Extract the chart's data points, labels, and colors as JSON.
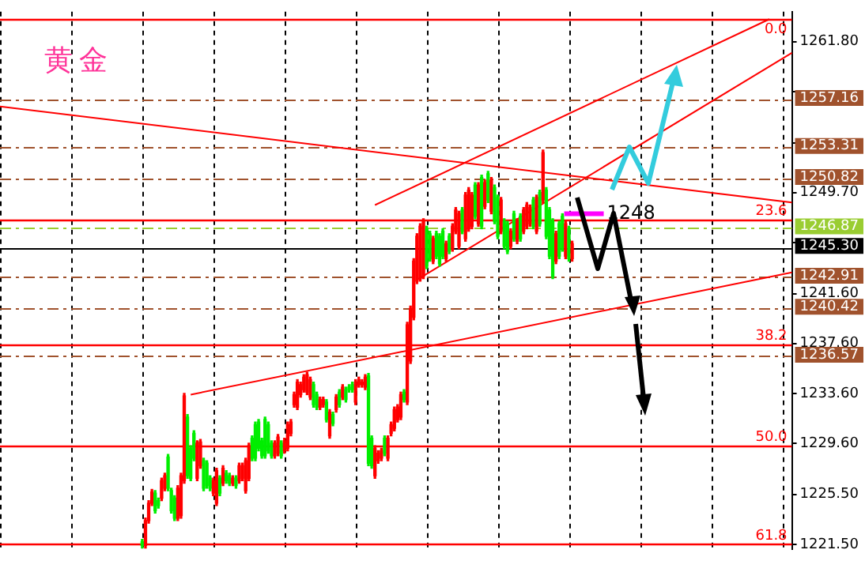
{
  "chart_data": {
    "type": "candlestick",
    "title": "黄金",
    "categories": [
      null,
      null,
      null,
      null,
      null,
      null,
      null,
      null,
      null,
      null,
      null,
      null,
      null,
      null,
      null,
      null,
      null,
      null,
      null,
      null,
      null,
      null,
      null,
      null,
      null,
      null,
      null,
      null,
      null,
      null,
      null,
      null,
      null,
      null,
      null,
      null,
      null,
      null,
      null,
      null,
      null,
      null,
      null,
      null,
      null,
      null,
      null,
      null,
      null,
      null,
      null,
      null,
      null,
      null,
      null,
      null,
      null,
      null,
      null,
      null,
      null,
      null,
      null,
      null,
      null,
      null,
      null,
      null,
      null,
      null,
      null,
      null,
      null,
      null,
      null,
      null,
      null,
      null,
      null,
      null,
      null,
      null,
      null,
      null,
      null,
      null,
      null,
      null,
      null,
      null,
      null,
      null,
      null,
      null,
      null,
      null,
      null,
      null,
      null,
      null,
      null,
      null,
      null,
      null,
      null,
      null,
      null,
      null,
      null,
      null,
      null,
      null,
      null,
      null,
      null,
      null,
      null,
      null,
      null,
      null,
      null,
      null,
      null,
      null,
      null,
      null,
      null,
      null,
      null,
      null,
      null,
      null,
      null,
      null,
      null,
      null,
      null,
      null,
      null,
      null,
      null,
      null,
      null,
      null,
      null,
      null,
      null,
      null,
      null,
      null,
      null,
      null,
      null,
      null,
      null,
      null,
      null,
      null,
      null,
      null,
      null,
      null,
      null,
      null,
      null,
      null,
      null,
      null,
      null,
      null,
      null,
      null,
      null,
      null,
      null,
      null,
      null,
      null,
      null,
      null,
      null,
      null,
      null,
      null,
      null,
      null,
      null,
      null,
      null,
      null,
      null,
      null,
      null,
      null,
      null,
      null,
      null,
      null,
      null,
      null,
      null,
      null,
      null,
      null,
      null,
      null,
      null,
      null,
      null,
      null,
      null,
      null,
      null,
      null,
      null,
      null,
      null,
      null,
      null,
      null,
      null,
      null,
      null,
      null,
      null,
      null,
      null,
      null,
      null,
      null,
      null,
      null,
      null,
      null,
      null,
      null,
      null,
      null,
      null,
      null,
      null,
      null,
      null,
      null,
      null,
      null
    ],
    "ohlc": [
      null,
      null,
      null,
      null,
      null,
      null,
      null,
      null,
      null,
      null,
      null,
      null,
      null,
      null,
      null,
      null,
      null,
      null,
      null,
      null,
      null,
      null,
      null,
      null,
      null,
      null,
      null,
      null,
      null,
      null,
      null,
      null,
      null,
      null,
      null,
      null,
      null,
      null,
      null,
      null,
      null,
      null,
      null,
      null,
      [
        1221.7,
        1221.9,
        1221.2,
        1221.4
      ],
      [
        1221.4,
        1223.6,
        1221.2,
        1223.4
      ],
      [
        1223.4,
        1225.0,
        1223.2,
        1224.8
      ],
      [
        1224.8,
        1225.9,
        1224.6,
        1225.7
      ],
      [
        1225.6,
        1225.8,
        1224.0,
        1224.2
      ],
      [
        1225.0,
        1225.2,
        1224.4,
        1224.6
      ],
      [
        1225.2,
        1226.8,
        1225.0,
        1226.6
      ],
      [
        1226.0,
        1227.2,
        1225.8,
        1227.0
      ],
      [
        1228.5,
        1228.7,
        1225.8,
        1226.0
      ],
      [
        1225.8,
        1226.0,
        1224.0,
        1224.2
      ],
      [
        1225.2,
        1225.4,
        1223.4,
        1223.6
      ],
      [
        1223.6,
        1226.2,
        1223.4,
        1226.0
      ],
      [
        1223.8,
        1227.2,
        1223.6,
        1227.0
      ],
      [
        1226.6,
        1233.6,
        1226.4,
        1233.4
      ],
      [
        1231.7,
        1231.9,
        1226.8,
        1227.0
      ],
      [
        1229.2,
        1229.4,
        1226.6,
        1226.8
      ],
      [
        1230.4,
        1230.6,
        1228.2,
        1228.4
      ],
      [
        1226.8,
        1229.8,
        1226.6,
        1229.6
      ],
      [
        1227.8,
        1229.9,
        1227.6,
        1229.7
      ],
      [
        1228.2,
        1228.4,
        1225.8,
        1226.0
      ],
      [
        1228.0,
        1228.2,
        1226.0,
        1226.2
      ],
      [
        1226.8,
        1227.0,
        1225.8,
        1226.0
      ],
      [
        1225.6,
        1226.8,
        1225.4,
        1226.6
      ],
      [
        1224.8,
        1227.6,
        1224.6,
        1227.4
      ],
      [
        1226.8,
        1227.0,
        1225.4,
        1225.6
      ],
      [
        1226.4,
        1227.8,
        1226.2,
        1227.6
      ],
      [
        1227.2,
        1227.4,
        1226.4,
        1226.6
      ],
      [
        1227.0,
        1227.2,
        1226.2,
        1226.4
      ],
      [
        1226.4,
        1227.0,
        1226.2,
        1226.8
      ],
      [
        1226.8,
        1227.0,
        1226.0,
        1226.2
      ],
      [
        1226.6,
        1228.0,
        1226.4,
        1227.8
      ],
      [
        1226.8,
        1228.0,
        1226.6,
        1227.8
      ],
      [
        1225.8,
        1228.4,
        1225.6,
        1228.2
      ],
      [
        1226.8,
        1229.6,
        1226.6,
        1229.4
      ],
      [
        1230.0,
        1230.2,
        1228.2,
        1228.4
      ],
      [
        1231.1,
        1231.3,
        1228.2,
        1228.4
      ],
      [
        1231.3,
        1231.5,
        1229.0,
        1229.2
      ],
      [
        1229.8,
        1230.0,
        1228.4,
        1228.6
      ],
      [
        1231.5,
        1231.7,
        1228.4,
        1228.6
      ],
      [
        1231.1,
        1231.3,
        1228.8,
        1229.0
      ],
      [
        1229.6,
        1229.8,
        1228.4,
        1228.6
      ],
      [
        1228.6,
        1229.8,
        1228.4,
        1229.6
      ],
      [
        1228.8,
        1230.3,
        1228.6,
        1230.1
      ],
      [
        1229.6,
        1229.8,
        1228.4,
        1228.6
      ],
      [
        1229.0,
        1230.0,
        1228.8,
        1229.8
      ],
      [
        1229.2,
        1231.3,
        1229.0,
        1231.1
      ],
      [
        1230.4,
        1231.5,
        1230.2,
        1231.3
      ],
      [
        1232.7,
        1233.7,
        1232.5,
        1233.5
      ],
      [
        1232.5,
        1234.7,
        1232.3,
        1234.5
      ],
      [
        1233.5,
        1234.5,
        1233.3,
        1234.3
      ],
      [
        1233.9,
        1235.1,
        1233.7,
        1234.9
      ],
      [
        1233.7,
        1235.3,
        1233.5,
        1235.1
      ],
      [
        1233.3,
        1234.9,
        1233.1,
        1234.7
      ],
      [
        1234.3,
        1234.5,
        1232.5,
        1232.7
      ],
      [
        1233.5,
        1233.7,
        1232.3,
        1232.5
      ],
      [
        1232.5,
        1233.3,
        1232.3,
        1233.1
      ],
      [
        1232.7,
        1233.3,
        1232.5,
        1233.1
      ],
      [
        1232.9,
        1233.1,
        1231.3,
        1231.5
      ],
      [
        1230.2,
        1232.3,
        1230.0,
        1232.1
      ],
      [
        1231.9,
        1232.1,
        1231.0,
        1231.2
      ],
      [
        1232.3,
        1233.5,
        1232.1,
        1233.3
      ],
      [
        1233.7,
        1233.9,
        1232.5,
        1232.7
      ],
      [
        1233.3,
        1234.3,
        1233.1,
        1234.1
      ],
      [
        1233.9,
        1234.1,
        1232.9,
        1233.1
      ],
      [
        1234.1,
        1234.3,
        1233.7,
        1233.9
      ],
      [
        1234.3,
        1234.5,
        1233.7,
        1233.9
      ],
      [
        1232.9,
        1234.7,
        1232.7,
        1234.5
      ],
      [
        1234.3,
        1234.9,
        1234.1,
        1234.7
      ],
      [
        1234.3,
        1234.7,
        1234.1,
        1234.5
      ],
      [
        1234.1,
        1235.1,
        1233.9,
        1234.9
      ],
      [
        1235.0,
        1235.2,
        1227.8,
        1228.0
      ],
      [
        1230.0,
        1230.2,
        1227.6,
        1227.8
      ],
      [
        1227.0,
        1229.4,
        1226.8,
        1229.2
      ],
      [
        1228.2,
        1229.0,
        1228.0,
        1228.8
      ],
      [
        1228.4,
        1229.2,
        1228.2,
        1229.0
      ],
      [
        1230.0,
        1230.2,
        1228.6,
        1228.8
      ],
      [
        1228.4,
        1230.2,
        1228.2,
        1230.0
      ],
      [
        1230.4,
        1231.3,
        1230.2,
        1231.1
      ],
      [
        1230.8,
        1232.5,
        1230.6,
        1232.3
      ],
      [
        1231.5,
        1232.7,
        1231.3,
        1232.5
      ],
      [
        1231.7,
        1233.7,
        1231.5,
        1233.5
      ],
      [
        1233.7,
        1233.9,
        1232.9,
        1233.1
      ],
      [
        1232.9,
        1239.3,
        1232.7,
        1239.1
      ],
      [
        1236.2,
        1240.6,
        1236.0,
        1240.4
      ],
      [
        1239.7,
        1244.4,
        1239.5,
        1244.2
      ],
      [
        1242.6,
        1246.4,
        1242.4,
        1246.2
      ],
      [
        1242.8,
        1247.2,
        1242.6,
        1247.0
      ],
      [
        1243.0,
        1247.6,
        1242.8,
        1247.4
      ],
      [
        1246.8,
        1247.0,
        1243.6,
        1243.8
      ],
      [
        1246.4,
        1246.6,
        1244.2,
        1244.4
      ],
      [
        1244.2,
        1246.2,
        1244.0,
        1246.0
      ],
      [
        1246.4,
        1246.6,
        1244.4,
        1244.6
      ],
      [
        1246.2,
        1246.4,
        1243.8,
        1244.0
      ],
      [
        1246.6,
        1246.8,
        1244.4,
        1244.6
      ],
      [
        1244.4,
        1245.8,
        1244.2,
        1245.6
      ],
      [
        1246.2,
        1246.4,
        1244.8,
        1245.0
      ],
      [
        1245.2,
        1247.2,
        1245.0,
        1247.0
      ],
      [
        1246.6,
        1248.5,
        1246.4,
        1248.3
      ],
      [
        1245.4,
        1248.2,
        1245.2,
        1248.0
      ],
      [
        1248.3,
        1248.5,
        1246.4,
        1246.6
      ],
      [
        1246.0,
        1249.7,
        1245.8,
        1249.5
      ],
      [
        1246.8,
        1250.1,
        1246.6,
        1249.9
      ],
      [
        1247.0,
        1249.7,
        1246.8,
        1249.5
      ],
      [
        1250.3,
        1250.5,
        1247.6,
        1247.8
      ],
      [
        1247.2,
        1250.5,
        1247.0,
        1250.3
      ],
      [
        1250.9,
        1251.1,
        1246.8,
        1247.0
      ],
      [
        1248.6,
        1250.7,
        1248.4,
        1250.5
      ],
      [
        1251.2,
        1251.4,
        1248.9,
        1249.1
      ],
      [
        1248.2,
        1250.9,
        1248.0,
        1250.7
      ],
      [
        1250.1,
        1250.3,
        1247.2,
        1247.4
      ],
      [
        1249.3,
        1249.5,
        1246.0,
        1246.2
      ],
      [
        1246.6,
        1249.3,
        1246.4,
        1249.1
      ],
      [
        1247.4,
        1247.6,
        1245.2,
        1245.4
      ],
      [
        1247.2,
        1247.4,
        1244.8,
        1245.0
      ],
      [
        1245.4,
        1246.8,
        1245.2,
        1246.6
      ],
      [
        1248.0,
        1248.2,
        1245.8,
        1246.0
      ],
      [
        1245.8,
        1247.6,
        1245.6,
        1247.4
      ],
      [
        1247.8,
        1248.0,
        1245.8,
        1246.0
      ],
      [
        1246.6,
        1248.5,
        1246.4,
        1248.3
      ],
      [
        1247.0,
        1248.9,
        1246.8,
        1248.7
      ],
      [
        1247.2,
        1248.7,
        1247.0,
        1248.5
      ],
      [
        1249.1,
        1249.3,
        1246.8,
        1247.0
      ],
      [
        1246.6,
        1249.5,
        1246.4,
        1249.3
      ],
      [
        1249.7,
        1249.9,
        1247.0,
        1247.2
      ],
      [
        1249.1,
        1253.1,
        1248.9,
        1252.9
      ],
      [
        1249.9,
        1250.1,
        1246.0,
        1246.2
      ],
      [
        1248.3,
        1248.5,
        1244.4,
        1244.6
      ],
      [
        1247.4,
        1247.6,
        1242.8,
        1243.0
      ],
      [
        1244.2,
        1246.6,
        1244.0,
        1246.4
      ],
      [
        1247.2,
        1247.4,
        1244.4,
        1244.6
      ],
      [
        1247.8,
        1248.0,
        1245.0,
        1245.2
      ],
      [
        1244.6,
        1247.4,
        1244.4,
        1247.2
      ],
      [
        1246.8,
        1247.0,
        1244.2,
        1244.4
      ],
      [
        1244.4,
        1245.8,
        1244.2,
        1245.6
      ],
      null,
      null,
      null,
      null,
      null,
      null,
      null,
      null,
      null,
      null,
      null,
      null,
      null,
      null,
      null,
      null,
      null,
      null,
      null,
      null,
      null,
      null,
      null,
      null,
      null,
      null,
      null,
      null,
      null,
      null,
      null,
      null,
      null,
      null,
      null,
      null,
      null,
      null,
      null,
      null,
      null,
      null,
      null,
      null,
      null,
      null,
      null,
      null,
      null,
      null,
      null,
      null,
      null,
      null,
      null,
      null,
      null,
      null,
      null,
      null,
      null,
      null,
      null,
      null,
      null,
      null,
      null,
      null
    ],
    "series": [
      {
        "type": "line",
        "color": "#ff0000",
        "values": [
          1256.6,
          null,
          null,
          null,
          null,
          null,
          null,
          null,
          null,
          null,
          null,
          null,
          null,
          null,
          null,
          null,
          null,
          null,
          null,
          null,
          null,
          null,
          null,
          null,
          null,
          null,
          null,
          null,
          null,
          null,
          null,
          null,
          null,
          null,
          null,
          null,
          null,
          null,
          null,
          null,
          null,
          null,
          null,
          null,
          null,
          null,
          null,
          null,
          null,
          null,
          null,
          null,
          null,
          null,
          null,
          null,
          null,
          null,
          null,
          null,
          null,
          null,
          null,
          null,
          null,
          null,
          null,
          null,
          null,
          null,
          null,
          null,
          null,
          null,
          null,
          null,
          null,
          null,
          null,
          null,
          null,
          null,
          null,
          null,
          null,
          null,
          null,
          null,
          null,
          null,
          null,
          null,
          null,
          null,
          null,
          null,
          null,
          null,
          null,
          null,
          null,
          null,
          null,
          null,
          null,
          null,
          null,
          null,
          null,
          null,
          null,
          null,
          null,
          null,
          null,
          null,
          null,
          null,
          null,
          null,
          null,
          null,
          null,
          null,
          null,
          null,
          null,
          null,
          null,
          null,
          null,
          null,
          null,
          null,
          null,
          null,
          null,
          null,
          null,
          null,
          null,
          null,
          null,
          null,
          null,
          null,
          null,
          null,
          null,
          null,
          null,
          null,
          null,
          null,
          null,
          null,
          null,
          null,
          null,
          null,
          null,
          null,
          null,
          null,
          null,
          null,
          null,
          null,
          null,
          null,
          null,
          null,
          null,
          null,
          null,
          null,
          null,
          null,
          null,
          null,
          null,
          null,
          null,
          null,
          null,
          null,
          null,
          null,
          null,
          null,
          null,
          null,
          null,
          null,
          null,
          null,
          null,
          null,
          null,
          null,
          null,
          null,
          null,
          null,
          null,
          null,
          null,
          null,
          null,
          null,
          null,
          null,
          null,
          null,
          null,
          null,
          null,
          null,
          null,
          null,
          null,
          null,
          null,
          null,
          null,
          null,
          null,
          null,
          null,
          null,
          null,
          null,
          null,
          null,
          null,
          null,
          null,
          null,
          null,
          null,
          null,
          null,
          null,
          null,
          null,
          1248.9
        ]
      },
      {
        "type": "line",
        "color": "#ff0000",
        "values": [
          null,
          null,
          null,
          null,
          null,
          null,
          null,
          null,
          null,
          null,
          null,
          null,
          null,
          null,
          null,
          null,
          null,
          null,
          null,
          null,
          null,
          null,
          null,
          null,
          null,
          null,
          null,
          null,
          null,
          null,
          null,
          null,
          null,
          null,
          null,
          null,
          null,
          null,
          null,
          null,
          null,
          null,
          null,
          null,
          null,
          null,
          null,
          null,
          null,
          null,
          null,
          null,
          null,
          null,
          null,
          null,
          null,
          null,
          null,
          null,
          null,
          null,
          null,
          null,
          null,
          null,
          null,
          null,
          null,
          null,
          null,
          null,
          null,
          null,
          null,
          null,
          null,
          null,
          null,
          null,
          null,
          null,
          null,
          null,
          null,
          null,
          null,
          null,
          null,
          null,
          null,
          null,
          null,
          null,
          null,
          null,
          null,
          null,
          null,
          null,
          null,
          null,
          null,
          null,
          null,
          null,
          null,
          null,
          null,
          null,
          null,
          null,
          null,
          null,
          null,
          null,
          1248.7,
          null,
          null,
          null,
          null,
          null,
          null,
          null,
          null,
          null,
          null,
          null,
          null,
          null,
          null,
          null,
          null,
          null,
          null,
          null,
          null,
          null,
          null,
          null,
          null,
          null,
          null,
          null,
          null,
          null,
          null,
          null,
          null,
          null,
          null,
          null,
          null,
          null,
          null,
          null,
          null,
          null,
          null,
          null,
          null,
          null,
          null,
          null,
          null,
          null,
          null,
          null,
          null,
          null,
          null,
          null,
          null,
          null,
          null,
          null,
          null,
          null,
          null,
          null,
          null,
          null,
          null,
          null,
          null,
          null,
          null,
          null,
          null,
          null,
          null,
          null,
          null,
          null,
          null,
          null,
          null,
          null,
          null,
          null,
          null,
          null,
          null,
          null,
          null,
          null,
          null,
          null,
          null,
          null,
          null,
          null,
          null,
          null,
          null,
          null,
          null,
          null,
          null,
          null,
          null,
          null,
          null,
          null,
          null,
          null,
          null,
          null,
          null,
          null,
          null,
          null,
          null,
          null,
          null,
          null,
          null,
          null,
          1263.6,
          null,
          null,
          null,
          null,
          null,
          null,
          null
        ]
      },
      {
        "type": "line",
        "color": "#ff0000",
        "values": [
          null,
          null,
          null,
          null,
          null,
          null,
          null,
          null,
          null,
          null,
          null,
          null,
          null,
          null,
          null,
          null,
          null,
          null,
          null,
          null,
          null,
          null,
          null,
          null,
          null,
          null,
          null,
          null,
          null,
          null,
          null,
          null,
          null,
          null,
          null,
          null,
          null,
          null,
          null,
          null,
          null,
          null,
          null,
          null,
          null,
          null,
          null,
          null,
          null,
          null,
          null,
          null,
          null,
          null,
          null,
          null,
          null,
          null,
          null,
          null,
          null,
          null,
          null,
          null,
          null,
          null,
          null,
          null,
          null,
          null,
          null,
          null,
          null,
          null,
          null,
          null,
          null,
          null,
          null,
          null,
          null,
          null,
          null,
          null,
          null,
          null,
          null,
          null,
          null,
          null,
          null,
          null,
          null,
          null,
          null,
          null,
          null,
          null,
          null,
          null,
          null,
          null,
          null,
          null,
          null,
          null,
          null,
          null,
          null,
          null,
          null,
          null,
          null,
          null,
          null,
          null,
          null,
          null,
          null,
          null,
          null,
          null,
          null,
          null,
          null,
          null,
          null,
          null,
          null,
          1242.7,
          null,
          null,
          null,
          null,
          null,
          null,
          null,
          null,
          null,
          null,
          null,
          null,
          null,
          null,
          null,
          null,
          null,
          null,
          null,
          null,
          null,
          null,
          null,
          null,
          null,
          null,
          null,
          null,
          null,
          null,
          null,
          null,
          null,
          null,
          null,
          null,
          null,
          null,
          null,
          null,
          null,
          null,
          null,
          null,
          null,
          null,
          null,
          null,
          null,
          null,
          null,
          null,
          null,
          null,
          null,
          null,
          null,
          null,
          null,
          null,
          null,
          null,
          null,
          null,
          null,
          null,
          null,
          null,
          null,
          null,
          null,
          null,
          null,
          null,
          null,
          null,
          null,
          null,
          null,
          null,
          null,
          null,
          null,
          null,
          null,
          null,
          null,
          null,
          null,
          null,
          null,
          null,
          null,
          null,
          null,
          null,
          null,
          null,
          null,
          null,
          null,
          null,
          null,
          null,
          null,
          null,
          null,
          null,
          null,
          null,
          null,
          null,
          null,
          null,
          null,
          1260.9
        ]
      },
      {
        "type": "line",
        "color": "#ff0000",
        "values": [
          null,
          null,
          null,
          null,
          null,
          null,
          null,
          null,
          null,
          null,
          null,
          null,
          null,
          null,
          null,
          null,
          null,
          null,
          null,
          null,
          null,
          null,
          null,
          null,
          null,
          null,
          null,
          null,
          null,
          null,
          null,
          null,
          null,
          null,
          null,
          null,
          null,
          null,
          null,
          null,
          null,
          null,
          null,
          null,
          null,
          null,
          null,
          null,
          null,
          null,
          null,
          null,
          null,
          null,
          null,
          null,
          null,
          null,
          null,
          1233.5,
          null,
          null,
          null,
          null,
          null,
          null,
          null,
          null,
          null,
          null,
          null,
          null,
          null,
          null,
          null,
          null,
          null,
          null,
          null,
          null,
          null,
          null,
          null,
          null,
          null,
          null,
          null,
          null,
          null,
          null,
          null,
          null,
          null,
          null,
          null,
          null,
          null,
          null,
          null,
          null,
          null,
          null,
          null,
          null,
          null,
          null,
          null,
          null,
          null,
          null,
          null,
          null,
          null,
          null,
          null,
          null,
          null,
          null,
          null,
          null,
          null,
          null,
          null,
          null,
          null,
          null,
          null,
          null,
          null,
          null,
          null,
          null,
          null,
          null,
          null,
          null,
          null,
          null,
          null,
          null,
          null,
          null,
          null,
          null,
          null,
          null,
          null,
          null,
          null,
          null,
          null,
          null,
          null,
          null,
          null,
          null,
          null,
          null,
          null,
          null,
          null,
          null,
          null,
          null,
          null,
          null,
          null,
          null,
          null,
          null,
          null,
          null,
          null,
          null,
          null,
          null,
          null,
          null,
          null,
          null,
          null,
          null,
          null,
          null,
          null,
          null,
          null,
          null,
          null,
          null,
          null,
          null,
          null,
          null,
          null,
          null,
          null,
          null,
          null,
          null,
          null,
          null,
          null,
          null,
          null,
          null,
          null,
          null,
          null,
          null,
          null,
          null,
          null,
          null,
          null,
          null,
          null,
          null,
          null,
          null,
          null,
          null,
          null,
          null,
          null,
          null,
          null,
          null,
          null,
          null,
          null,
          null,
          null,
          null,
          null,
          null,
          null,
          null,
          null,
          null,
          null,
          null,
          null,
          null,
          null,
          1243.3
        ]
      }
    ],
    "ylim": [
      1221.1,
      1264.2
    ],
    "yticks": [
      {
        "value": 1221.5,
        "label": "1221.50"
      },
      {
        "value": 1225.5,
        "label": "1225.50"
      },
      {
        "value": 1229.6,
        "label": "1229.60"
      },
      {
        "value": 1233.6,
        "label": "1233.60"
      },
      {
        "value": 1237.6,
        "label": "1237.60"
      },
      {
        "value": 1241.6,
        "label": "1241.60"
      },
      {
        "value": 1245.7,
        "label": null
      },
      {
        "value": 1249.7,
        "label": "1249.70"
      },
      {
        "value": 1253.7,
        "label": null
      },
      {
        "value": 1257.8,
        "label": null
      },
      {
        "value": 1261.8,
        "label": "1261.80"
      }
    ],
    "grid": "x",
    "ref_lines": [
      {
        "axis": "y",
        "value": 1263.6,
        "color": "#ff0000"
      },
      {
        "axis": "y",
        "value": 1247.5,
        "color": "#ff0000"
      },
      {
        "axis": "y",
        "value": 1237.5,
        "color": "#ff0000"
      },
      {
        "axis": "y",
        "value": 1229.4,
        "color": "#ff0000"
      },
      {
        "axis": "y",
        "value": 1221.5,
        "color": "#ff0000"
      },
      {
        "axis": "y",
        "value": 1257.16,
        "label": "1257.16",
        "color": "#a0522d",
        "line_style": "dashed"
      },
      {
        "axis": "y",
        "value": 1253.31,
        "label": "1253.31",
        "color": "#a0522d",
        "line_style": "dashed"
      },
      {
        "axis": "y",
        "value": 1250.82,
        "label": "1250.82",
        "color": "#a0522d",
        "line_style": "dashed"
      },
      {
        "axis": "y",
        "value": 1246.87,
        "label": "1246.87",
        "color": "#9acd32",
        "line_style": "dashed"
      },
      {
        "axis": "y",
        "value": 1245.3,
        "label": "1245.30",
        "color": "#000000",
        "line_style": "solid"
      },
      {
        "axis": "y",
        "value": 1242.91,
        "label": "1242.91",
        "color": "#a0522d",
        "line_style": "dashed"
      },
      {
        "axis": "y",
        "value": 1240.42,
        "label": "1240.42",
        "color": "#a0522d",
        "line_style": "dashed"
      },
      {
        "axis": "y",
        "value": 1236.57,
        "label": "1236.57",
        "color": "#a0522d",
        "line_style": "dashed"
      }
    ],
    "annotations": [
      {
        "text": "0.0",
        "y": 1263.6
      },
      {
        "text": "23.6",
        "y": 1247.5
      },
      {
        "text": "38.2",
        "y": 1237.5
      },
      {
        "text": "50.0",
        "y": 1229.4
      },
      {
        "text": "61.8",
        "y": 1221.5
      },
      {
        "text": "1248",
        "y": 1248
      }
    ]
  }
}
